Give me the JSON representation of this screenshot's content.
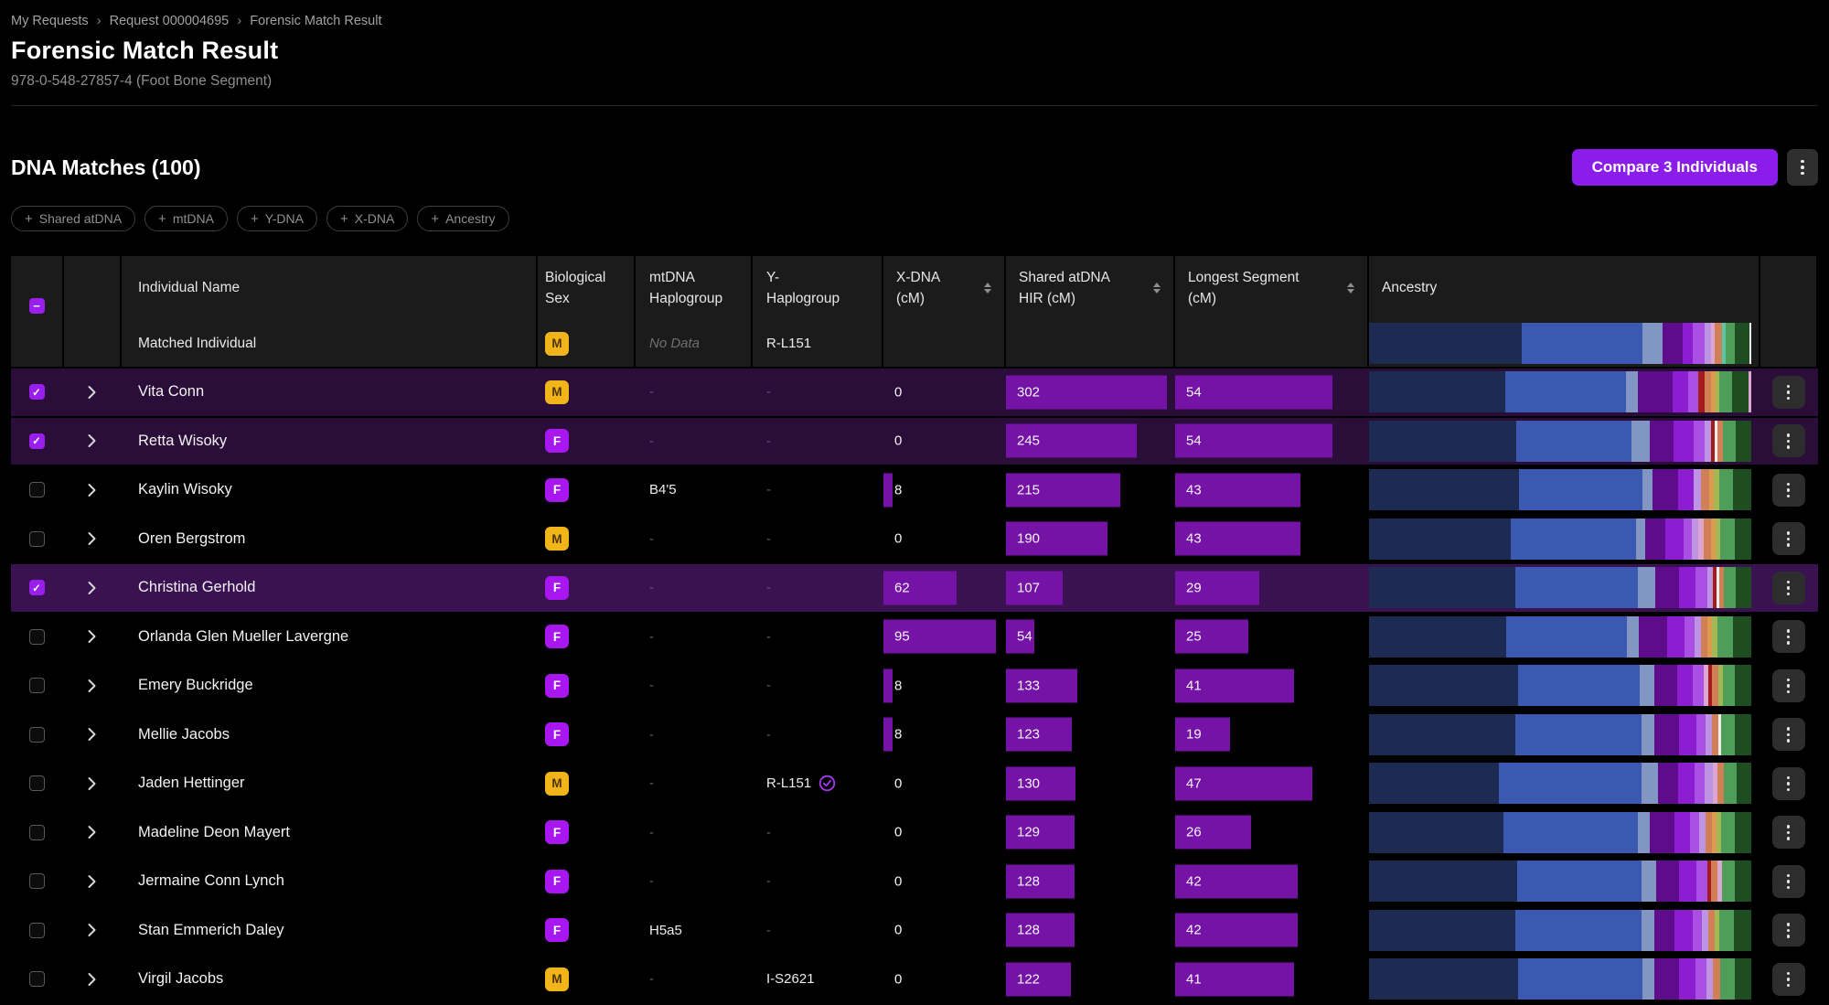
{
  "icons": {
    "breadcrumb_separator": "›",
    "plus": "+",
    "check": "✓",
    "minus": "−",
    "kebab": "vertical-ellipsis",
    "expand_chevron": "chevron-right",
    "sort": "up-down-arrows",
    "verified": "check-circle"
  },
  "colors": {
    "accent_purple": "#8b1cea",
    "checkbox_purple": "#9a1fef",
    "bar_purple": "#7413a5",
    "badge_male": "#f2b41b",
    "badge_female": "#a816f0",
    "selected_row": "#2a0d38",
    "highlighted_row": "#3a1252",
    "header_bg": "#1b1b1b",
    "verified_purple": "#a43bf0",
    "ancestry_palette": {
      "navy": "#1d2b52",
      "blue": "#3b59b0",
      "slate": "#8296c4",
      "darkpurple": "#5e0c8c",
      "purple": "#8c1dd1",
      "violet": "#a94fe3",
      "lavender": "#bd93e3",
      "pink": "#dca6d0",
      "salmon": "#d07f56",
      "orange": "#db9b4f",
      "yellowgreen": "#a3b755",
      "green": "#4e9e59",
      "darkgreen": "#1d4d21",
      "red": "#a31b1b",
      "white": "#ededed",
      "teal": "#57c9a2"
    }
  },
  "breadcrumb": {
    "items": [
      "My Requests",
      "Request 000004695",
      "Forensic Match Result"
    ]
  },
  "page": {
    "title": "Forensic Match Result",
    "subtitle": "978-0-548-27857-4 (Foot Bone Segment)"
  },
  "section": {
    "title": "DNA Matches (100)",
    "compare_button": "Compare 3 Individuals"
  },
  "filters": {
    "items": [
      "Shared atDNA",
      "mtDNA",
      "Y-DNA",
      "X-DNA",
      "Ancestry"
    ]
  },
  "table": {
    "columns": {
      "name": "Individual Name",
      "sex": "Biological Sex",
      "mtdna": "mtDNA Haplogroup",
      "yhap": "Y-Haplogroup",
      "xdna": "X-DNA (cM)",
      "shared": "Shared atDNA HIR (cM)",
      "longest": "Longest Segment (cM)",
      "ancestry": "Ancestry"
    },
    "bar_scales": {
      "xdna_max": 102,
      "shared_max": 314,
      "longest_max": 66
    },
    "rows": [
      {
        "matched": true,
        "name": "Matched Individual",
        "sex": "M",
        "mtdna": "No Data",
        "yhap": "R-L151",
        "verified": false,
        "xdna": null,
        "shared": null,
        "longest": null,
        "ancestry": [
          [
            "navy",
            38
          ],
          [
            "blue",
            30
          ],
          [
            "slate",
            5
          ],
          [
            "darkpurple",
            5
          ],
          [
            "purple",
            2.5
          ],
          [
            "violet",
            3
          ],
          [
            "lavender",
            1.5
          ],
          [
            "pink",
            1
          ],
          [
            "salmon",
            1.8
          ],
          [
            "teal",
            0.8
          ],
          [
            "green",
            2.4
          ],
          [
            "darkgreen",
            3.5
          ],
          [
            "white",
            0.5
          ]
        ]
      },
      {
        "name": "Vita Conn",
        "checked": true,
        "selected": true,
        "sex": "M",
        "mtdna": "-",
        "yhap": "-",
        "xdna": 0,
        "shared": 302,
        "longest": 54,
        "ancestry": [
          [
            "navy",
            34
          ],
          [
            "blue",
            30
          ],
          [
            "slate",
            3
          ],
          [
            "darkpurple",
            8.5
          ],
          [
            "purple",
            4
          ],
          [
            "violet",
            2.5
          ],
          [
            "red",
            1.6
          ],
          [
            "salmon",
            1.6
          ],
          [
            "orange",
            1
          ],
          [
            "yellowgreen",
            1
          ],
          [
            "green",
            3.2
          ],
          [
            "darkgreen",
            4
          ],
          [
            "pink",
            0.8
          ]
        ]
      },
      {
        "name": "Retta Wisoky",
        "checked": true,
        "selected": true,
        "sex": "F",
        "mtdna": "-",
        "yhap": "-",
        "xdna": 0,
        "shared": 245,
        "longest": 54,
        "ancestry": [
          [
            "navy",
            37
          ],
          [
            "blue",
            29
          ],
          [
            "slate",
            4.5
          ],
          [
            "darkpurple",
            6
          ],
          [
            "purple",
            5
          ],
          [
            "violet",
            2.8
          ],
          [
            "lavender",
            1.6
          ],
          [
            "red",
            1
          ],
          [
            "white",
            0.5
          ],
          [
            "salmon",
            1.4
          ],
          [
            "green",
            3.2
          ],
          [
            "darkgreen",
            4
          ]
        ]
      },
      {
        "name": "Kaylin Wisoky",
        "checked": false,
        "sex": "F",
        "mtdna": "B4'5",
        "yhap": "-",
        "xdna": 8,
        "shared": 215,
        "longest": 43,
        "ancestry": [
          [
            "navy",
            38
          ],
          [
            "blue",
            31
          ],
          [
            "slate",
            2.6
          ],
          [
            "darkpurple",
            6.4
          ],
          [
            "purple",
            4
          ],
          [
            "lavender",
            2
          ],
          [
            "salmon",
            2
          ],
          [
            "orange",
            1.2
          ],
          [
            "yellowgreen",
            1.2
          ],
          [
            "green",
            3.6
          ],
          [
            "darkgreen",
            4.6
          ]
        ]
      },
      {
        "name": "Oren Bergstrom",
        "checked": false,
        "sex": "M",
        "mtdna": "-",
        "yhap": "-",
        "xdna": 0,
        "shared": 190,
        "longest": 43,
        "ancestry": [
          [
            "navy",
            35
          ],
          [
            "blue",
            31
          ],
          [
            "slate",
            2.2
          ],
          [
            "darkpurple",
            5
          ],
          [
            "purple",
            4.4
          ],
          [
            "violet",
            2.2
          ],
          [
            "lavender",
            1.6
          ],
          [
            "pink",
            1.2
          ],
          [
            "salmon",
            1.8
          ],
          [
            "orange",
            1.2
          ],
          [
            "yellowgreen",
            1.2
          ],
          [
            "green",
            3.6
          ],
          [
            "darkgreen",
            4
          ]
        ]
      },
      {
        "name": "Christina Gerhold",
        "checked": true,
        "selected": true,
        "highlight": true,
        "sex": "F",
        "mtdna": "-",
        "yhap": "-",
        "xdna": 62,
        "shared": 107,
        "longest": 29,
        "ancestry": [
          [
            "navy",
            37
          ],
          [
            "blue",
            31
          ],
          [
            "slate",
            4.4
          ],
          [
            "darkpurple",
            6
          ],
          [
            "purple",
            4
          ],
          [
            "violet",
            3
          ],
          [
            "lavender",
            1.6
          ],
          [
            "red",
            0.9
          ],
          [
            "white",
            0.6
          ],
          [
            "salmon",
            1.1
          ],
          [
            "green",
            3
          ],
          [
            "darkgreen",
            4
          ]
        ]
      },
      {
        "name": "Orlanda Glen Mueller Lavergne",
        "checked": false,
        "sex": "F",
        "mtdna": "-",
        "yhap": "-",
        "xdna": 95,
        "shared": 54,
        "longest": 25,
        "ancestry": [
          [
            "navy",
            34
          ],
          [
            "blue",
            30
          ],
          [
            "slate",
            3
          ],
          [
            "darkpurple",
            7
          ],
          [
            "purple",
            4.2
          ],
          [
            "violet",
            2.6
          ],
          [
            "lavender",
            1.6
          ],
          [
            "salmon",
            1.6
          ],
          [
            "orange",
            1.1
          ],
          [
            "yellowgreen",
            1.3
          ],
          [
            "green",
            3.8
          ],
          [
            "darkgreen",
            4.6
          ]
        ]
      },
      {
        "name": "Emery Buckridge",
        "checked": false,
        "sex": "F",
        "mtdna": "-",
        "yhap": "-",
        "xdna": 8,
        "shared": 133,
        "longest": 41,
        "ancestry": [
          [
            "navy",
            37
          ],
          [
            "blue",
            30
          ],
          [
            "slate",
            3.6
          ],
          [
            "darkpurple",
            5.6
          ],
          [
            "purple",
            4
          ],
          [
            "violet",
            2.6
          ],
          [
            "pink",
            1.1
          ],
          [
            "red",
            0.9
          ],
          [
            "salmon",
            1.6
          ],
          [
            "yellowgreen",
            1.1
          ],
          [
            "green",
            3.1
          ],
          [
            "darkgreen",
            4
          ]
        ]
      },
      {
        "name": "Mellie Jacobs",
        "checked": false,
        "sex": "F",
        "mtdna": "-",
        "yhap": "-",
        "xdna": 8,
        "shared": 123,
        "longest": 19,
        "ancestry": [
          [
            "navy",
            36
          ],
          [
            "blue",
            31
          ],
          [
            "slate",
            3.2
          ],
          [
            "darkpurple",
            6
          ],
          [
            "purple",
            4.4
          ],
          [
            "violet",
            2.2
          ],
          [
            "lavender",
            1.6
          ],
          [
            "salmon",
            1.6
          ],
          [
            "white",
            0.6
          ],
          [
            "green",
            3.4
          ],
          [
            "darkgreen",
            4
          ]
        ]
      },
      {
        "name": "Jaden Hettinger",
        "checked": false,
        "sex": "M",
        "mtdna": "-",
        "yhap": "R-L151",
        "verified": true,
        "xdna": 0,
        "shared": 130,
        "longest": 47,
        "ancestry": [
          [
            "navy",
            32
          ],
          [
            "blue",
            35
          ],
          [
            "slate",
            4
          ],
          [
            "darkpurple",
            5
          ],
          [
            "purple",
            4
          ],
          [
            "violet",
            2.6
          ],
          [
            "lavender",
            2
          ],
          [
            "pink",
            1.1
          ],
          [
            "salmon",
            1.6
          ],
          [
            "green",
            3.1
          ],
          [
            "darkgreen",
            3.6
          ]
        ]
      },
      {
        "name": "Madeline Deon Mayert",
        "checked": false,
        "sex": "F",
        "mtdna": "-",
        "yhap": "-",
        "xdna": 0,
        "shared": 129,
        "longest": 26,
        "ancestry": [
          [
            "navy",
            33
          ],
          [
            "blue",
            33
          ],
          [
            "slate",
            3
          ],
          [
            "darkpurple",
            6
          ],
          [
            "purple",
            4
          ],
          [
            "violet",
            2.2
          ],
          [
            "lavender",
            1.6
          ],
          [
            "salmon",
            1.6
          ],
          [
            "orange",
            1.1
          ],
          [
            "yellowgreen",
            1.1
          ],
          [
            "green",
            3.4
          ],
          [
            "darkgreen",
            4
          ]
        ]
      },
      {
        "name": "Jermaine Conn Lynch",
        "checked": false,
        "sex": "F",
        "mtdna": "-",
        "yhap": "-",
        "xdna": 0,
        "shared": 128,
        "longest": 42,
        "ancestry": [
          [
            "navy",
            36
          ],
          [
            "blue",
            30
          ],
          [
            "slate",
            3.6
          ],
          [
            "darkpurple",
            5.6
          ],
          [
            "purple",
            4.2
          ],
          [
            "violet",
            2.6
          ],
          [
            "red",
            1
          ],
          [
            "salmon",
            1.6
          ],
          [
            "pink",
            0.9
          ],
          [
            "green",
            3.2
          ],
          [
            "darkgreen",
            4
          ]
        ]
      },
      {
        "name": "Stan Emmerich Daley",
        "checked": false,
        "sex": "F",
        "mtdna": "H5a5",
        "yhap": "-",
        "xdna": 0,
        "shared": 128,
        "longest": 42,
        "ancestry": [
          [
            "navy",
            36
          ],
          [
            "blue",
            31
          ],
          [
            "slate",
            3
          ],
          [
            "darkpurple",
            5
          ],
          [
            "purple",
            4.6
          ],
          [
            "violet",
            2.2
          ],
          [
            "lavender",
            1.6
          ],
          [
            "salmon",
            1.6
          ],
          [
            "yellowgreen",
            1.1
          ],
          [
            "green",
            3.6
          ],
          [
            "darkgreen",
            4.2
          ]
        ]
      },
      {
        "name": "Virgil Jacobs",
        "checked": false,
        "sex": "M",
        "mtdna": "-",
        "yhap": "I-S2621",
        "xdna": 0,
        "shared": 122,
        "longest": 41,
        "ancestry": [
          [
            "navy",
            36
          ],
          [
            "blue",
            30
          ],
          [
            "slate",
            3
          ],
          [
            "darkpurple",
            6
          ],
          [
            "purple",
            4
          ],
          [
            "violet",
            2.6
          ],
          [
            "lavender",
            1.6
          ],
          [
            "salmon",
            1.6
          ],
          [
            "green",
            3.6
          ],
          [
            "darkgreen",
            4
          ]
        ]
      }
    ]
  }
}
